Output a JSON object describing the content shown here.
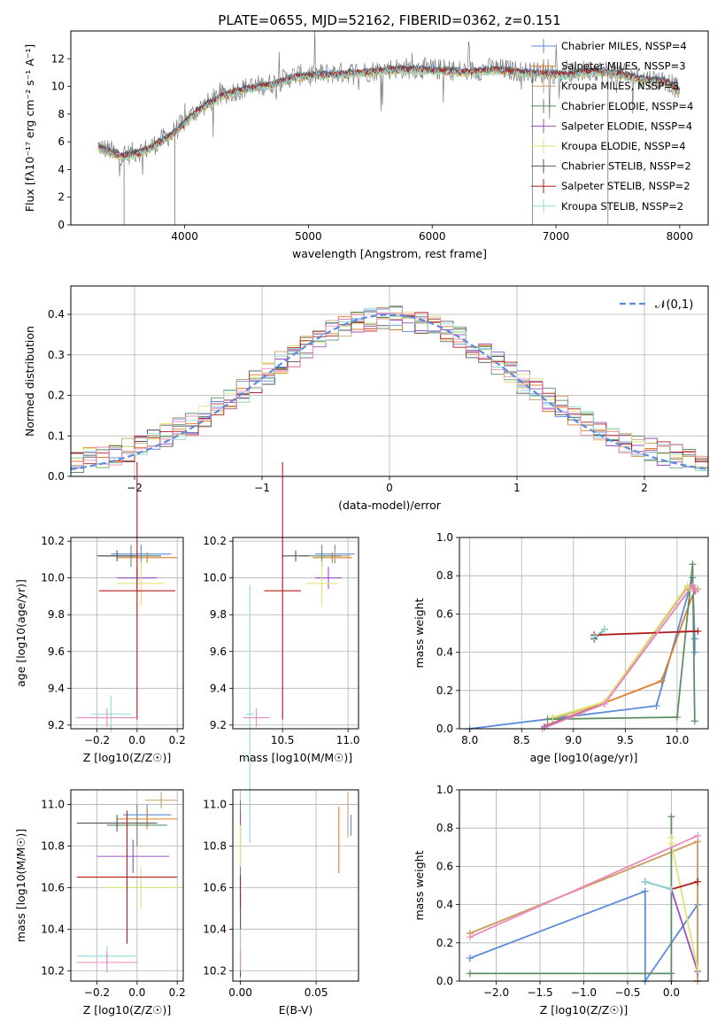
{
  "palette": [
    "#5b8bdb",
    "#e07d2c",
    "#c9a26b",
    "#5f8f63",
    "#9a4fc0",
    "#e2e27a",
    "#555555",
    "#b31b1b",
    "#8fdad5",
    "#e98bbd",
    "#7a7a7a"
  ],
  "figure_title": "PLATE=0655, MJD=52162, FIBERID=0362, z=0.151",
  "legend_entries": [
    "Chabrier MILES, N$_{SSP}$=4",
    "Salpeter MILES, N$_{SSP}$=3",
    "Kroupa MILES, N$_{SSP}$=3",
    "Chabrier ELODIE, N$_{SSP}$=4",
    "Salpeter ELODIE, N$_{SSP}$=4",
    "Kroupa ELODIE, N$_{SSP}$=4",
    "Chabrier STELIB, N$_{SSP}$=2",
    "Salpeter STELIB, N$_{SSP}$=2",
    "Kroupa STELIB, N$_{SSP}$=2"
  ],
  "chart_data": [
    {
      "type": "line",
      "title": "PLATE=0655, MJD=52162, FIBERID=0362, z=0.151",
      "xlabel": "wavelength [Angstrom, rest frame]",
      "ylabel": "Flux [f$_\\lambda$10$^{-17}$ erg cm$^{-2}$ s$^{-1}$ A$^{-1}$]",
      "xlim": [
        3080,
        8230
      ],
      "ylim": [
        0,
        14
      ],
      "xticks": [
        4000,
        5000,
        6000,
        7000,
        8000
      ],
      "yticks": [
        0,
        2,
        4,
        6,
        8,
        10,
        12
      ],
      "grid": false,
      "legend": "top-right",
      "series_labels": [
        "Chabrier MILES, N$_{SSP}$=4",
        "Salpeter MILES, N$_{SSP}$=3",
        "Kroupa MILES, N$_{SSP}$=3",
        "Chabrier ELODIE, N$_{SSP}$=4",
        "Salpeter ELODIE, N$_{SSP}$=4",
        "Kroupa ELODIE, N$_{SSP}$=4",
        "Chabrier STELIB, N$_{SSP}$=2",
        "Salpeter STELIB, N$_{SSP}$=2",
        "Kroupa STELIB, N$_{SSP}$=2"
      ],
      "continuum": {
        "x": [
          3300,
          3500,
          3700,
          3900,
          4100,
          4300,
          4500,
          4700,
          4900,
          5100,
          5300,
          5500,
          5700,
          5900,
          6100,
          6300,
          6500,
          6700,
          6900,
          7100,
          7300,
          7500,
          7700,
          7900,
          8000
        ],
        "y": [
          5.7,
          5.0,
          5.5,
          6.6,
          8.3,
          9.4,
          9.9,
          10.2,
          10.8,
          10.9,
          11.0,
          11.1,
          11.3,
          11.3,
          11.2,
          11.1,
          11.3,
          11.1,
          11.0,
          10.9,
          11.2,
          11.0,
          10.6,
          10.4,
          9.7
        ]
      }
    },
    {
      "type": "bar",
      "xlabel": "(data-model)/error",
      "ylabel": "Normed distribution",
      "xlim": [
        -2.5,
        2.5
      ],
      "ylim": [
        0,
        0.47
      ],
      "xticks": [
        -2,
        -1,
        0,
        1,
        2
      ],
      "yticks": [
        0.0,
        0.1,
        0.2,
        0.3,
        0.4
      ],
      "grid": true,
      "legend": "top-right",
      "legend_label": "$\\mathcal{N}(0,1)$",
      "reference_curve": "standard normal",
      "bin_width": 0.1
    },
    {
      "type": "scatter",
      "xlabel": "Z [log$_{10}$($Z/Z_\\odot$)]",
      "ylabel": "age  [log$_{10}$($age/yr$)]",
      "xlim": [
        -0.33,
        0.23
      ],
      "ylim": [
        9.18,
        10.22
      ],
      "xticks": [
        -0.2,
        0.0,
        0.2
      ],
      "yticks": [
        9.2,
        9.4,
        9.6,
        9.8,
        10.0,
        10.2
      ],
      "grid": true,
      "points": [
        [
          0.02,
          10.13,
          0.15,
          0.05
        ],
        [
          0.05,
          10.11,
          0.15,
          0.03
        ],
        [
          0.0,
          10.12,
          0.12,
          0.03
        ],
        [
          -0.03,
          10.12,
          0.15,
          0.06
        ],
        [
          0.0,
          10.0,
          0.1,
          0.06
        ],
        [
          0.02,
          9.97,
          0.12,
          0.12
        ],
        [
          -0.1,
          10.12,
          0.1,
          0.03
        ],
        [
          0.0,
          9.93,
          0.19,
          0.7
        ],
        [
          -0.13,
          9.26,
          0.1,
          0.1
        ],
        [
          -0.15,
          9.24,
          0.15,
          0.05
        ]
      ]
    },
    {
      "type": "scatter",
      "xlabel": "mass [log$_{10}$($M/M_\\odot$)]",
      "ylabel": "",
      "xlim": [
        10.12,
        11.08
      ],
      "ylim": [
        9.18,
        10.22
      ],
      "xticks": [
        10.5,
        11.0
      ],
      "yticks": [
        9.2,
        9.4,
        9.6,
        9.8,
        10.0,
        10.2
      ],
      "grid": true,
      "points": [
        [
          10.9,
          10.13,
          0.15,
          0.05
        ],
        [
          10.88,
          10.11,
          0.15,
          0.03
        ],
        [
          10.9,
          10.12,
          0.12,
          0.03
        ],
        [
          10.8,
          10.12,
          0.15,
          0.06
        ],
        [
          10.85,
          10.0,
          0.1,
          0.06
        ],
        [
          10.8,
          9.97,
          0.12,
          0.12
        ],
        [
          10.6,
          10.12,
          0.1,
          0.03
        ],
        [
          10.5,
          9.93,
          0.14,
          0.7
        ],
        [
          10.25,
          9.26,
          0.03,
          0.7
        ],
        [
          10.3,
          9.24,
          0.1,
          0.05
        ]
      ]
    },
    {
      "type": "line",
      "xlabel": "age  [log$_{10}$($age/yr$)]",
      "ylabel": "mass weight",
      "xlim": [
        7.9,
        10.3
      ],
      "ylim": [
        0.0,
        1.0
      ],
      "xticks": [
        8.0,
        8.5,
        9.0,
        9.5,
        10.0
      ],
      "yticks": [
        0.0,
        0.2,
        0.4,
        0.6,
        0.8,
        1.0
      ],
      "grid": true,
      "series": [
        {
          "x": [
            8.0,
            9.8,
            10.15,
            10.17,
            10.17
          ],
          "y": [
            0.0,
            0.12,
            0.79,
            0.47,
            0.4
          ]
        },
        {
          "x": [
            8.75,
            9.85,
            10.17
          ],
          "y": [
            0.02,
            0.25,
            0.73
          ]
        },
        {
          "x": [
            8.8,
            9.3,
            10.1,
            10.2
          ],
          "y": [
            0.05,
            0.14,
            0.74,
            0.73
          ]
        },
        {
          "x": [
            8.75,
            10.0,
            10.15,
            10.17
          ],
          "y": [
            0.05,
            0.06,
            0.86,
            0.04
          ]
        },
        {
          "x": [
            8.72,
            9.3,
            10.15,
            10.17
          ],
          "y": [
            0.01,
            0.13,
            0.75,
            0.72
          ]
        },
        {
          "x": [
            8.8,
            9.3,
            10.1,
            10.15
          ],
          "y": [
            0.06,
            0.14,
            0.75,
            0.72
          ]
        },
        {
          "x": [
            9.2,
            9.3
          ],
          "y": [
            0.47,
            0.52
          ]
        },
        {
          "x": [
            9.2,
            10.2
          ],
          "y": [
            0.49,
            0.51
          ]
        },
        {
          "x": [
            9.2,
            9.3
          ],
          "y": [
            0.48,
            0.52
          ]
        },
        {
          "x": [
            8.7,
            9.3,
            10.15,
            10.18
          ],
          "y": [
            0.0,
            0.13,
            0.75,
            0.72
          ]
        }
      ]
    },
    {
      "type": "scatter",
      "xlabel": "Z [log$_{10}$($Z/Z_\\odot$)]",
      "ylabel": "mass [log$_{10}$($M/M_\\odot$)]",
      "xlim": [
        -0.33,
        0.23
      ],
      "ylim": [
        10.15,
        11.07
      ],
      "xticks": [
        -0.2,
        0.0,
        0.2
      ],
      "yticks": [
        10.2,
        10.4,
        10.6,
        10.8,
        11.0
      ],
      "grid": true,
      "points": [
        [
          0.05,
          10.95,
          0.12,
          0.05
        ],
        [
          0.05,
          10.93,
          0.15,
          0.05
        ],
        [
          0.12,
          11.02,
          0.08,
          0.04
        ],
        [
          0.0,
          10.9,
          0.15,
          0.1
        ],
        [
          -0.02,
          10.75,
          0.18,
          0.08
        ],
        [
          0.02,
          10.6,
          0.19,
          0.1
        ],
        [
          -0.1,
          10.91,
          0.2,
          0.04
        ],
        [
          -0.05,
          10.65,
          0.25,
          0.32
        ],
        [
          -0.15,
          10.27,
          0.15,
          0.05
        ],
        [
          -0.15,
          10.24,
          0.15,
          0.05
        ]
      ]
    },
    {
      "type": "scatter",
      "xlabel": "E(B-V)",
      "ylabel": "",
      "xlim": [
        -0.005,
        0.078
      ],
      "ylim": [
        10.15,
        11.07
      ],
      "xticks": [
        0.0,
        0.05
      ],
      "yticks": [
        10.2,
        10.4,
        10.6,
        10.8,
        11.0
      ],
      "grid": true,
      "points": [
        [
          0.073,
          10.9,
          0.0,
          0.05
        ],
        [
          0.065,
          10.83,
          0.0,
          0.16
        ],
        [
          0.071,
          10.95,
          0.0,
          0.11
        ],
        [
          0.0,
          10.84,
          0.0,
          0.18
        ],
        [
          0.0,
          10.9,
          0.0,
          0.07
        ],
        [
          0.0,
          10.8,
          0.0,
          0.1
        ],
        [
          0.0,
          10.37,
          0.0,
          0.2
        ],
        [
          0.0,
          10.58,
          0.0,
          0.08
        ],
        [
          0.0,
          10.3,
          0.0,
          0.1
        ],
        [
          0.0,
          10.25,
          0.0,
          0.05
        ]
      ]
    },
    {
      "type": "line",
      "xlabel": "Z [log$_{10}$($Z/Z_\\odot$)]",
      "ylabel": "mass weight",
      "xlim": [
        -2.42,
        0.42
      ],
      "ylim": [
        0.0,
        1.0
      ],
      "xticks": [
        -2.0,
        -1.5,
        -1.0,
        -0.5,
        0.0
      ],
      "yticks": [
        0.0,
        0.2,
        0.4,
        0.6,
        0.8,
        1.0
      ],
      "grid": true,
      "series": [
        {
          "x": [
            -2.3,
            -0.3,
            -0.3,
            0.3,
            0.3
          ],
          "y": [
            0.12,
            0.47,
            0.0,
            0.4,
            0.0
          ]
        },
        {
          "x": [
            -2.3,
            0.3,
            0.3
          ],
          "y": [
            0.25,
            0.73,
            0.0
          ]
        },
        {
          "x": [
            -2.3,
            0.3,
            0.3
          ],
          "y": [
            0.25,
            0.73,
            0.0
          ]
        },
        {
          "x": [
            -2.3,
            0.0,
            0.0,
            0.0
          ],
          "y": [
            0.04,
            0.04,
            0.86,
            0.0
          ]
        },
        {
          "x": [
            -0.3,
            0.0,
            0.3
          ],
          "y": [
            0.52,
            0.48,
            0.05
          ]
        },
        {
          "x": [
            0.0,
            0.0,
            0.3
          ],
          "y": [
            0.75,
            0.72,
            0.06
          ]
        },
        {
          "x": [
            -0.3,
            0.0
          ],
          "y": [
            0.52,
            0.48
          ]
        },
        {
          "x": [
            0.0,
            0.3
          ],
          "y": [
            0.48,
            0.52
          ]
        },
        {
          "x": [
            -0.3,
            0.0
          ],
          "y": [
            0.52,
            0.48
          ]
        },
        {
          "x": [
            -2.3,
            0.3
          ],
          "y": [
            0.23,
            0.76
          ]
        }
      ]
    }
  ]
}
